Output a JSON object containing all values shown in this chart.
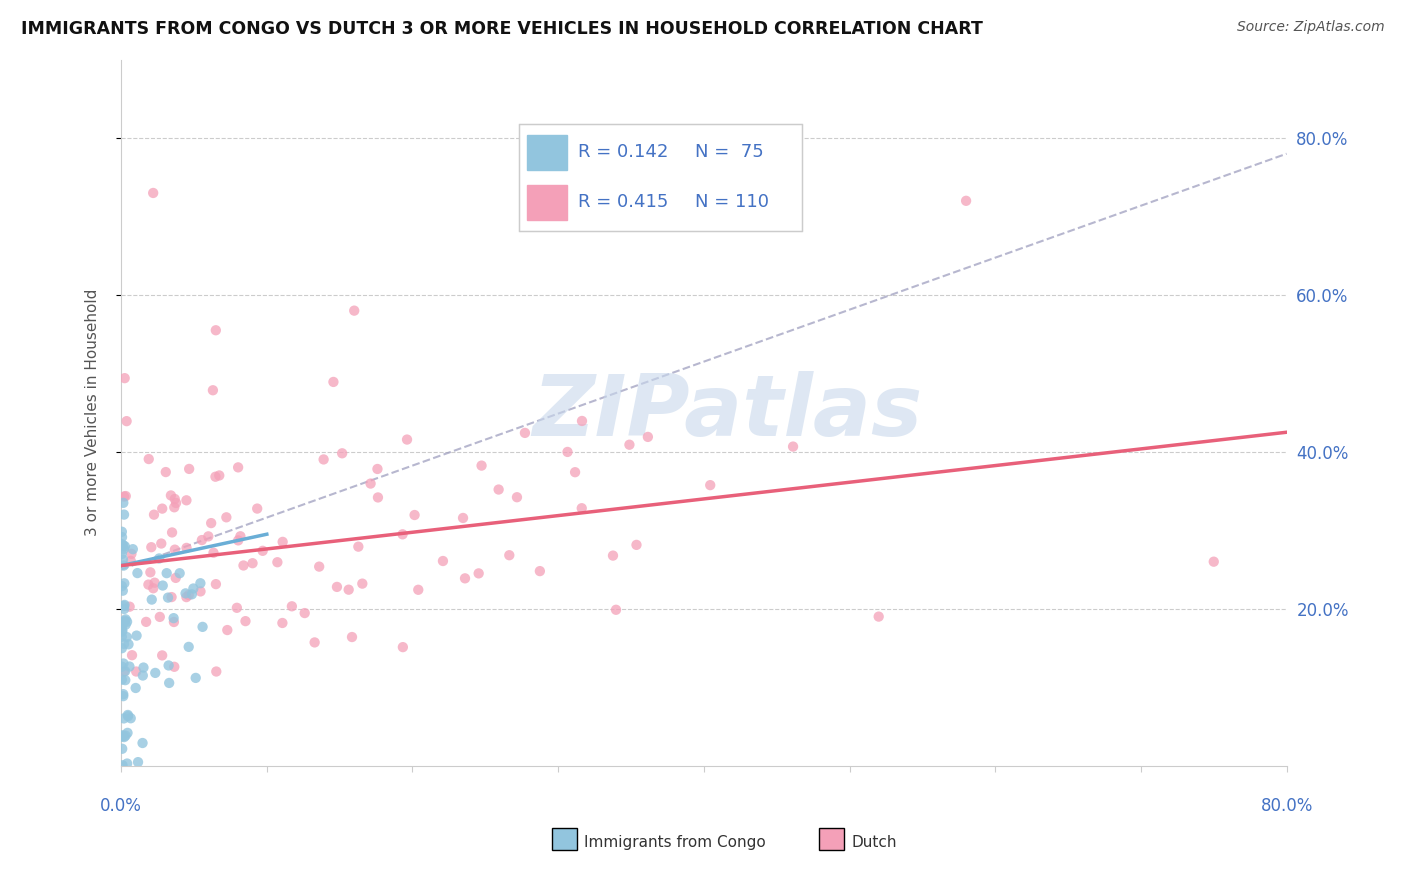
{
  "title": "IMMIGRANTS FROM CONGO VS DUTCH 3 OR MORE VEHICLES IN HOUSEHOLD CORRELATION CHART",
  "source": "Source: ZipAtlas.com",
  "ylabel": "3 or more Vehicles in Household",
  "xlim": [
    0.0,
    0.8
  ],
  "ylim": [
    0.0,
    0.9
  ],
  "color_congo": "#92C5DE",
  "color_dutch": "#F4A0B8",
  "color_congo_line": "#6aaed6",
  "color_dutch_line": "#E8607A",
  "color_ref_line": "#aaaacc",
  "color_tick_label": "#4472C4",
  "watermark_color": "#c8d8ec",
  "watermark_text": "ZIPatlas"
}
